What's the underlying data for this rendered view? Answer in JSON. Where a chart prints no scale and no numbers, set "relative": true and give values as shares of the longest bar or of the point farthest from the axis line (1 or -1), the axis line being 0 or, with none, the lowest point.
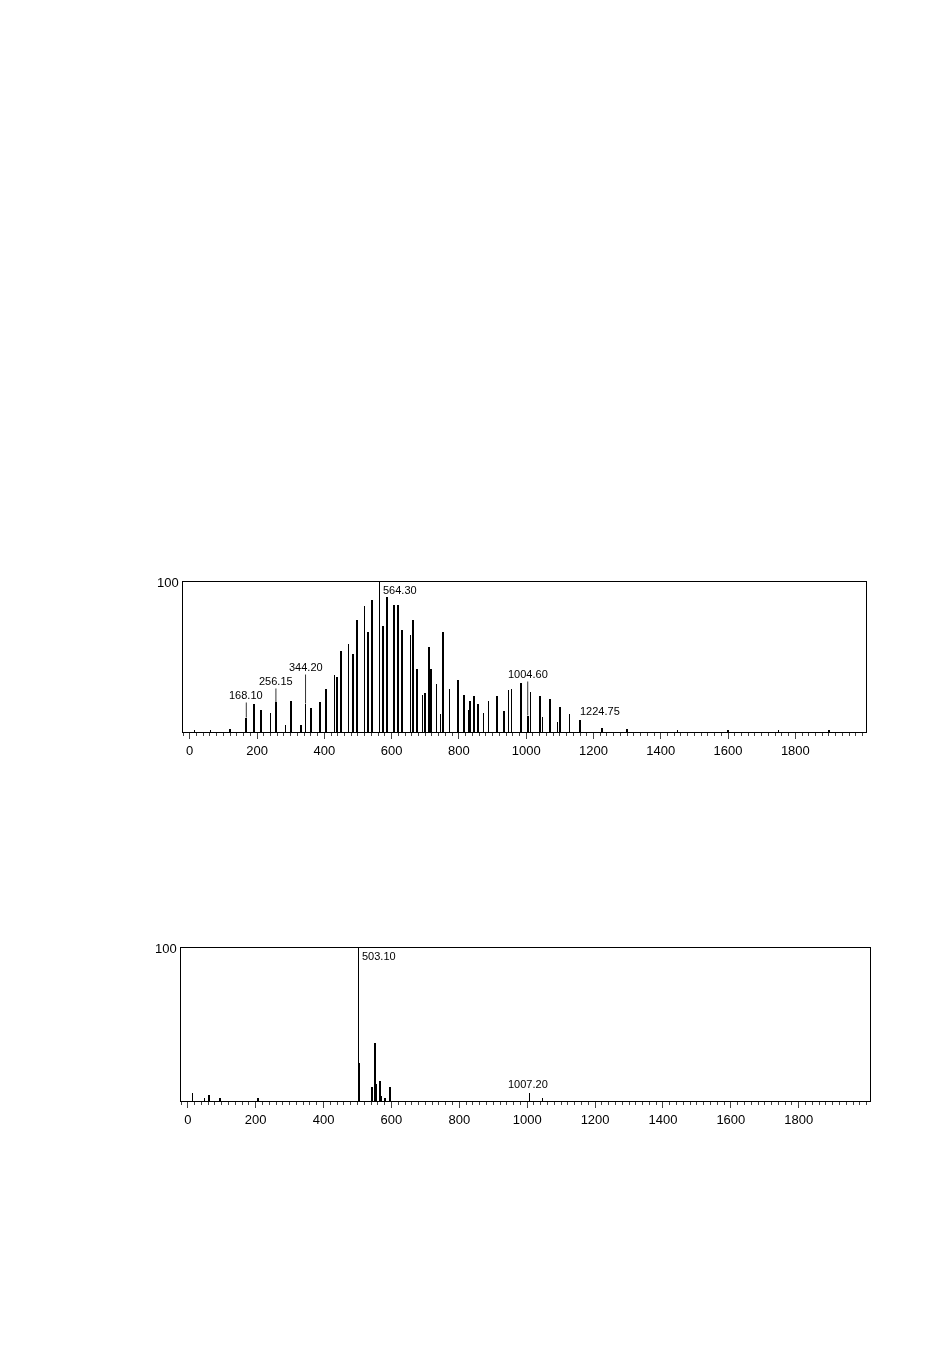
{
  "chart_data": [
    {
      "type": "bar",
      "relative": true,
      "color": "#000000",
      "xlim": [
        -20,
        2010
      ],
      "xticks": [
        0,
        200,
        400,
        600,
        800,
        1000,
        1200,
        1400,
        1600,
        1800
      ],
      "x": [
        14,
        62,
        120,
        168.1,
        191,
        212,
        240,
        256.15,
        285,
        301,
        330,
        344.2,
        360,
        387,
        405,
        430,
        438,
        450,
        472,
        485,
        497,
        519,
        529,
        542,
        564.3,
        574,
        586,
        607,
        619,
        631,
        656,
        664,
        676,
        692,
        700,
        711,
        717,
        733,
        745,
        753,
        772,
        794,
        798,
        815,
        829,
        833,
        845,
        857,
        873,
        888,
        914,
        935,
        947,
        956,
        984,
        1004.6,
        1013,
        1041,
        1048,
        1071,
        1093,
        1101,
        1129,
        1159,
        1224.75,
        1300,
        1450,
        1600,
        1750,
        1900
      ],
      "values": [
        0.01,
        0.01,
        0.02,
        0.096,
        0.19,
        0.15,
        0.13,
        0.2,
        0.05,
        0.21,
        0.05,
        0.19,
        0.16,
        0.2,
        0.29,
        0.38,
        0.37,
        0.54,
        0.59,
        0.52,
        0.75,
        0.84,
        0.67,
        0.88,
        1.0,
        0.71,
        0.9,
        0.85,
        0.85,
        0.68,
        0.65,
        0.75,
        0.42,
        0.25,
        0.26,
        0.57,
        0.42,
        0.32,
        0.12,
        0.67,
        0.29,
        null,
        0.35,
        0.25,
        0.15,
        0.21,
        0.24,
        0.19,
        0.13,
        0.21,
        0.24,
        0.14,
        0.28,
        0.29,
        0.33,
        0.11,
        0.27,
        0.24,
        0.1,
        0.22,
        0.07,
        0.17,
        0.12,
        0.08,
        0.03,
        0.02,
        0.01,
        0.01,
        0.015,
        0.01
      ],
      "annotations": [
        "100",
        {
          "text": "168.10",
          "x": 168.1,
          "y": 0.096
        },
        {
          "text": "256.15",
          "x": 256.15,
          "y": 0.2
        },
        {
          "text": "344.20",
          "x": 344.2,
          "y": 0.19
        },
        {
          "text": "564.30",
          "x": 564.3,
          "y": 1.0
        },
        {
          "text": "1004.60",
          "x": 1004.6,
          "y": 0.11
        },
        {
          "text": "1224.75",
          "x": 1224.75,
          "y": 0.03
        }
      ]
    },
    {
      "type": "bar",
      "relative": true,
      "color": "#000000",
      "xlim": [
        -20,
        2010
      ],
      "xticks": [
        0,
        200,
        400,
        600,
        800,
        1000,
        1200,
        1400,
        1600,
        1800
      ],
      "x": [
        14,
        49,
        62,
        94,
        207,
        503.1,
        506,
        543,
        552,
        555,
        566,
        569,
        582,
        596,
        1007.2,
        1045
      ],
      "values": [
        0.05,
        0.02,
        0.04,
        0.02,
        0.02,
        1.0,
        0.25,
        0.09,
        0.38,
        0.11,
        0.13,
        0.03,
        0.02,
        0.09,
        0.05,
        0.02
      ],
      "annotations": [
        "100",
        {
          "text": "503.10",
          "x": 503.1,
          "y": 1.0
        },
        {
          "text": "1007.20",
          "x": 1007.2,
          "y": 0.05
        }
      ]
    }
  ]
}
